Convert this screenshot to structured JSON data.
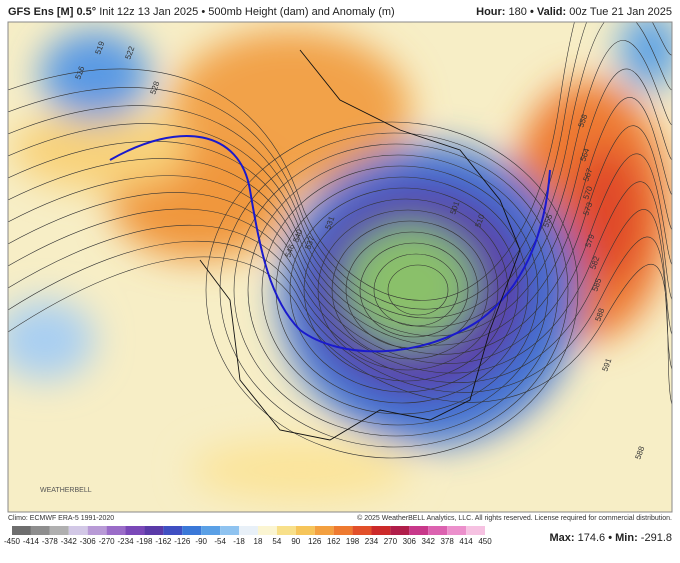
{
  "header": {
    "model": "GFS Ens [M] 0.5°",
    "title": "Init 12z 13 Jan 2025 • 500mb Height (dam) and Anomaly (m)",
    "hour_label": "Hour:",
    "hour": "180",
    "valid_label": "• Valid:",
    "valid": "00z Tue 21 Jan 2025"
  },
  "map": {
    "contour_labels": [
      "516",
      "519",
      "522",
      "528",
      "531",
      "537",
      "540",
      "546",
      "501",
      "510",
      "555",
      "558",
      "564",
      "567",
      "570",
      "573",
      "579",
      "582",
      "585",
      "588",
      "591",
      "588"
    ],
    "logo": "WEATHERBELL"
  },
  "footer": {
    "climo": "Climo: ECMWF ERA-5 1991-2020",
    "copyright": "© 2025 WeatherBELL Analytics, LLC. All rights reserved. License required for commercial distribution.",
    "max_label": "Max:",
    "max": 174.6,
    "min_label": "• Min:",
    "min": -291.8
  },
  "colorbar": {
    "ticks": [
      -450,
      -414,
      -378,
      -342,
      -306,
      -270,
      -234,
      -198,
      -162,
      -126,
      -90,
      -54,
      -18,
      18,
      54,
      90,
      126,
      162,
      198,
      234,
      270,
      306,
      342,
      378,
      414,
      450
    ],
    "colors": [
      "#6e6e6e",
      "#8e8e8e",
      "#b0b0b0",
      "#d2c8e6",
      "#b89ad6",
      "#9a6cc8",
      "#7a48b8",
      "#5a3aa8",
      "#3f4fc2",
      "#3a78d8",
      "#5aa0e6",
      "#8fc3f0",
      "#e8f0f8",
      "#fbf5d2",
      "#f8e08a",
      "#f6c55a",
      "#f3a040",
      "#ee7a30",
      "#e2502a",
      "#cc2a2a",
      "#b01e4a",
      "#c8388a",
      "#dc62b0",
      "#ec90cc",
      "#f6c2e2"
    ]
  }
}
